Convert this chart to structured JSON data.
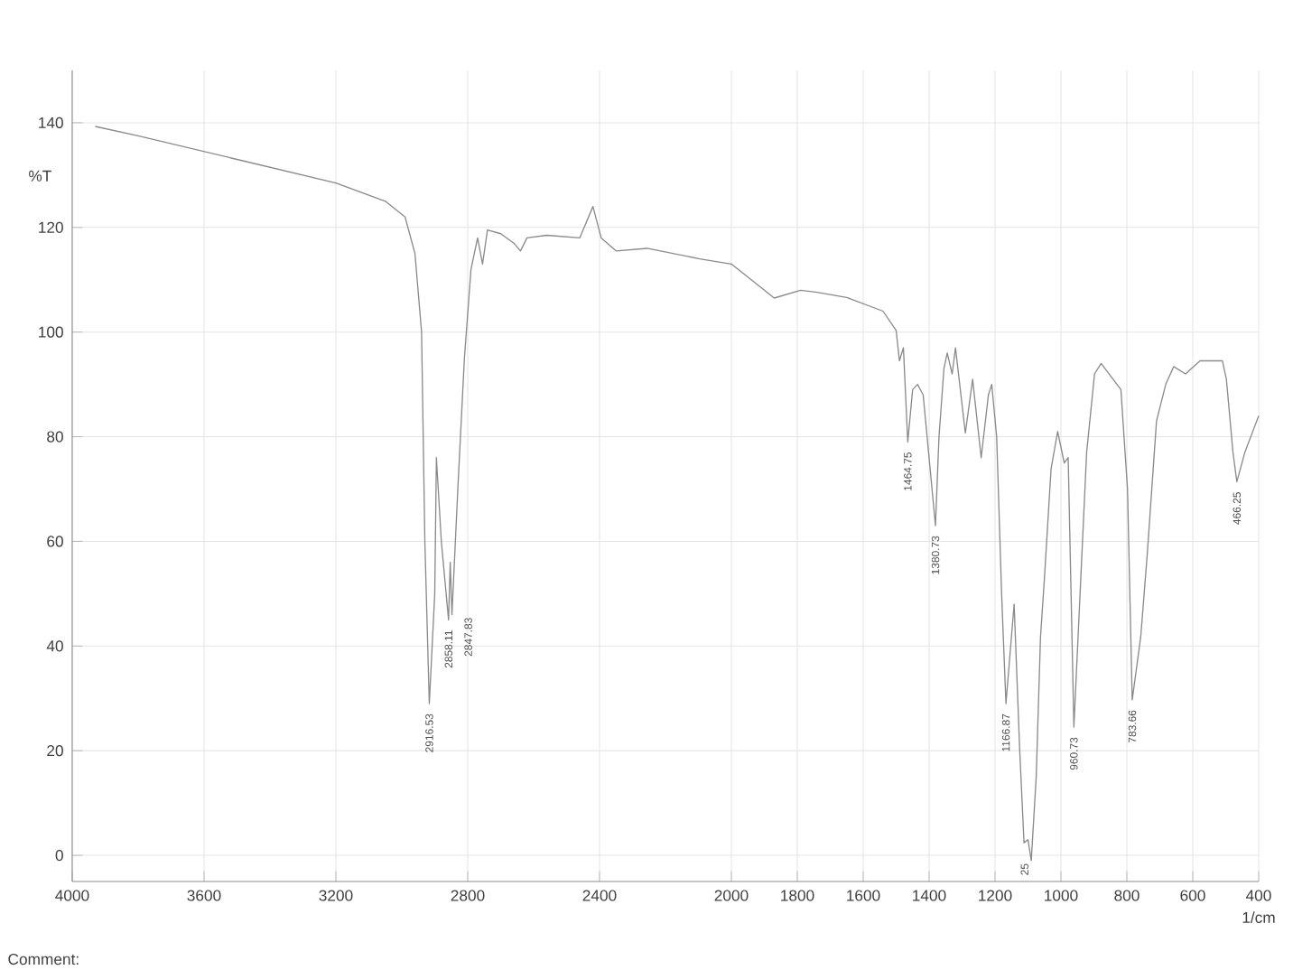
{
  "chart_data": {
    "type": "line",
    "xlabel": "1/cm",
    "ylabel": "%T",
    "xlim": [
      4000,
      400
    ],
    "ylim": [
      -5,
      150
    ],
    "xticks": [
      4000,
      3600,
      3200,
      2800,
      2400,
      2000,
      1800,
      1600,
      1400,
      1200,
      1000,
      800,
      600,
      400
    ],
    "yticks": [
      0,
      20,
      40,
      60,
      80,
      100,
      120,
      140
    ],
    "grid": true,
    "series": [
      {
        "color": "#8a8a8a",
        "x": [
          3930,
          3800,
          3500,
          3200,
          3050,
          2990,
          2960,
          2940,
          2930,
          2916.53,
          2900,
          2895,
          2880,
          2858.11,
          2853,
          2847.83,
          2830,
          2810,
          2790,
          2770,
          2755,
          2740,
          2700,
          2660,
          2640,
          2620,
          2560,
          2460,
          2420,
          2395,
          2350,
          2256,
          2096,
          2000,
          1900,
          1870,
          1790,
          1740,
          1650,
          1540,
          1500,
          1490,
          1478,
          1464.75,
          1450,
          1435,
          1418,
          1380.73,
          1370,
          1355,
          1345,
          1330,
          1320,
          1290,
          1268,
          1242,
          1220,
          1210,
          1195,
          1180,
          1166.87,
          1142,
          1125,
          1112,
          1100,
          1090,
          1075,
          1062,
          1050,
          1030,
          1010,
          990,
          978,
          960.73,
          922,
          898,
          878,
          842,
          818,
          798,
          783.66,
          758,
          738,
          710,
          682,
          658,
          622,
          578,
          510,
          498,
          478,
          466.25,
          442,
          400
        ],
        "values": [
          139.3,
          137.5,
          133,
          128.5,
          125,
          122,
          115,
          100,
          60,
          29,
          50,
          76,
          60,
          45,
          56,
          46,
          70,
          95,
          112,
          118,
          113,
          119.5,
          118.8,
          117,
          115.5,
          118,
          118.5,
          118,
          124,
          118,
          115.5,
          116,
          114,
          113,
          108,
          106.5,
          108,
          107.6,
          106.6,
          104,
          100.3,
          94.5,
          97,
          79,
          89,
          90,
          88,
          63,
          80,
          93,
          96,
          92,
          97,
          80.7,
          91,
          76,
          88,
          90,
          80,
          50,
          29,
          48,
          20,
          2.4,
          3,
          -1,
          15,
          41.7,
          53,
          73.8,
          81,
          75,
          76,
          24.5,
          77,
          92,
          94,
          91,
          89,
          70,
          29.7,
          41.7,
          57.6,
          83,
          90,
          93.4,
          92,
          94.5,
          94.5,
          91,
          77,
          71.4,
          77,
          84
        ]
      }
    ],
    "annotations": [
      {
        "text": "2916.53",
        "x": 2916.53,
        "y": 29
      },
      {
        "text": "2858.11",
        "x": 2858.11,
        "y": 45
      },
      {
        "text": "2847.83",
        "x": 2847.83,
        "y": 46
      },
      {
        "text": "1464.75",
        "x": 1464.75,
        "y": 79
      },
      {
        "text": "1380.73",
        "x": 1380.73,
        "y": 63
      },
      {
        "text": "1166.87",
        "x": 1166.87,
        "y": 29
      },
      {
        "text": "25",
        "x": 1090,
        "y": -1
      },
      {
        "text": "960.73",
        "x": 960.73,
        "y": 24.5
      },
      {
        "text": "783.66",
        "x": 783.66,
        "y": 29.7
      },
      {
        "text": "466.25",
        "x": 466.25,
        "y": 71.4
      },
      "Comment:"
    ]
  }
}
